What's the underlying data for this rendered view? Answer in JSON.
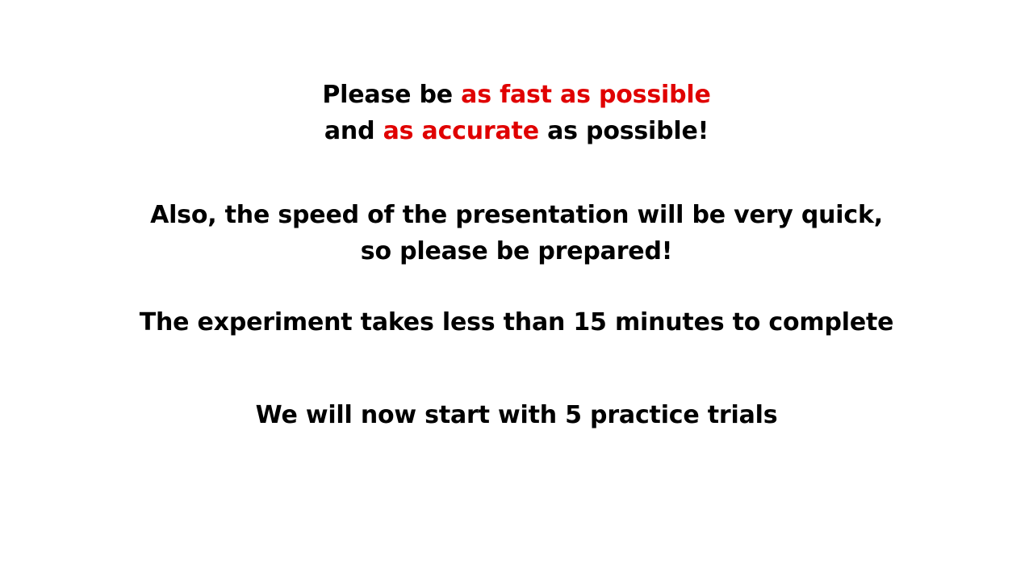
{
  "colors": {
    "text": "#000000",
    "emphasis": "#e00000",
    "background": "#ffffff"
  },
  "instructions": {
    "speed_accuracy": {
      "line1_prefix": "Please be ",
      "line1_emphasis": "as fast as possible",
      "line2_prefix": "and ",
      "line2_emphasis": "as accurate",
      "line2_suffix": " as possible!"
    },
    "presentation": {
      "line1": "Also, the speed of the presentation will be very quick,",
      "line2": "so please be prepared!"
    },
    "duration": "The experiment takes less than 15 minutes to complete",
    "practice": "We will now start with 5 practice trials"
  }
}
